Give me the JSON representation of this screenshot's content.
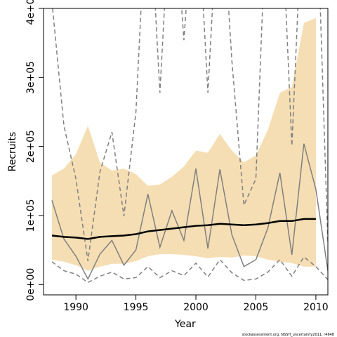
{
  "chart_data": {
    "type": "line",
    "xlabel": "Year",
    "ylabel": "Recruits",
    "footnote": "stockassessment.org, NSSH_uncertainty2011, r4648",
    "x": [
      1988,
      1989,
      1990,
      1991,
      1992,
      1993,
      1994,
      1995,
      1996,
      1997,
      1998,
      1999,
      2000,
      2001,
      2002,
      2003,
      2004,
      2005,
      2006,
      2007,
      2008,
      2009,
      2010,
      2011
    ],
    "band": {
      "color": "#f5deb3",
      "upper": [
        158000,
        168000,
        189000,
        230000,
        177000,
        165000,
        168000,
        160000,
        143000,
        145000,
        156000,
        171000,
        194000,
        191000,
        218000,
        194000,
        177000,
        187000,
        224000,
        278000,
        286000,
        379000,
        386000,
        null
      ],
      "lower": [
        36000,
        33000,
        28000,
        20000,
        26000,
        30000,
        30000,
        34000,
        41000,
        44000,
        44000,
        43000,
        41000,
        38000,
        40000,
        39000,
        42000,
        41000,
        36000,
        33000,
        31000,
        26000,
        26000,
        null
      ]
    },
    "series": [
      {
        "color": "#808080",
        "dashed": false,
        "width": 1.5,
        "values": [
          122000,
          66000,
          41000,
          8000,
          44000,
          64000,
          28000,
          50000,
          131000,
          54000,
          107000,
          64000,
          168000,
          52000,
          167000,
          72000,
          26000,
          36000,
          82000,
          162000,
          43000,
          204000,
          138000,
          20000
        ]
      },
      {
        "color": "#808080",
        "dashed": true,
        "width": 1.5,
        "values": [
          33000,
          20000,
          15000,
          3000,
          12000,
          18000,
          8000,
          10000,
          26000,
          10000,
          20000,
          13000,
          31000,
          11000,
          36000,
          17000,
          6000,
          8000,
          18000,
          36000,
          12000,
          40000,
          26000,
          7000
        ]
      },
      {
        "color": "#808080",
        "dashed": true,
        "width": 1.5,
        "values": [
          410000,
          230000,
          153000,
          34000,
          163000,
          221000,
          99000,
          250000,
          600000,
          278000,
          600000,
          354000,
          600000,
          278000,
          600000,
          324000,
          115000,
          153000,
          600000,
          600000,
          201000,
          600000,
          600000,
          60000
        ]
      },
      {
        "color": "#000000",
        "dashed": false,
        "width": 2.5,
        "values": [
          71000,
          69000,
          68000,
          66000,
          69000,
          70000,
          71000,
          73000,
          77000,
          79000,
          81000,
          83000,
          85000,
          86000,
          88000,
          87000,
          86000,
          87000,
          89000,
          92000,
          92000,
          95000,
          95000,
          null
        ]
      }
    ],
    "xlim": [
      1987.3,
      2011
    ],
    "ylim": [
      -15000,
      400000
    ],
    "xticks": [
      1990,
      1995,
      2000,
      2005,
      2010
    ],
    "yticks": [
      {
        "value": 0,
        "label": "0e+00"
      },
      {
        "value": 100000,
        "label": "1e+05"
      },
      {
        "value": 200000,
        "label": "2e+05"
      },
      {
        "value": 300000,
        "label": "3e+05"
      },
      {
        "value": 400000,
        "label": "4e+05"
      }
    ]
  }
}
